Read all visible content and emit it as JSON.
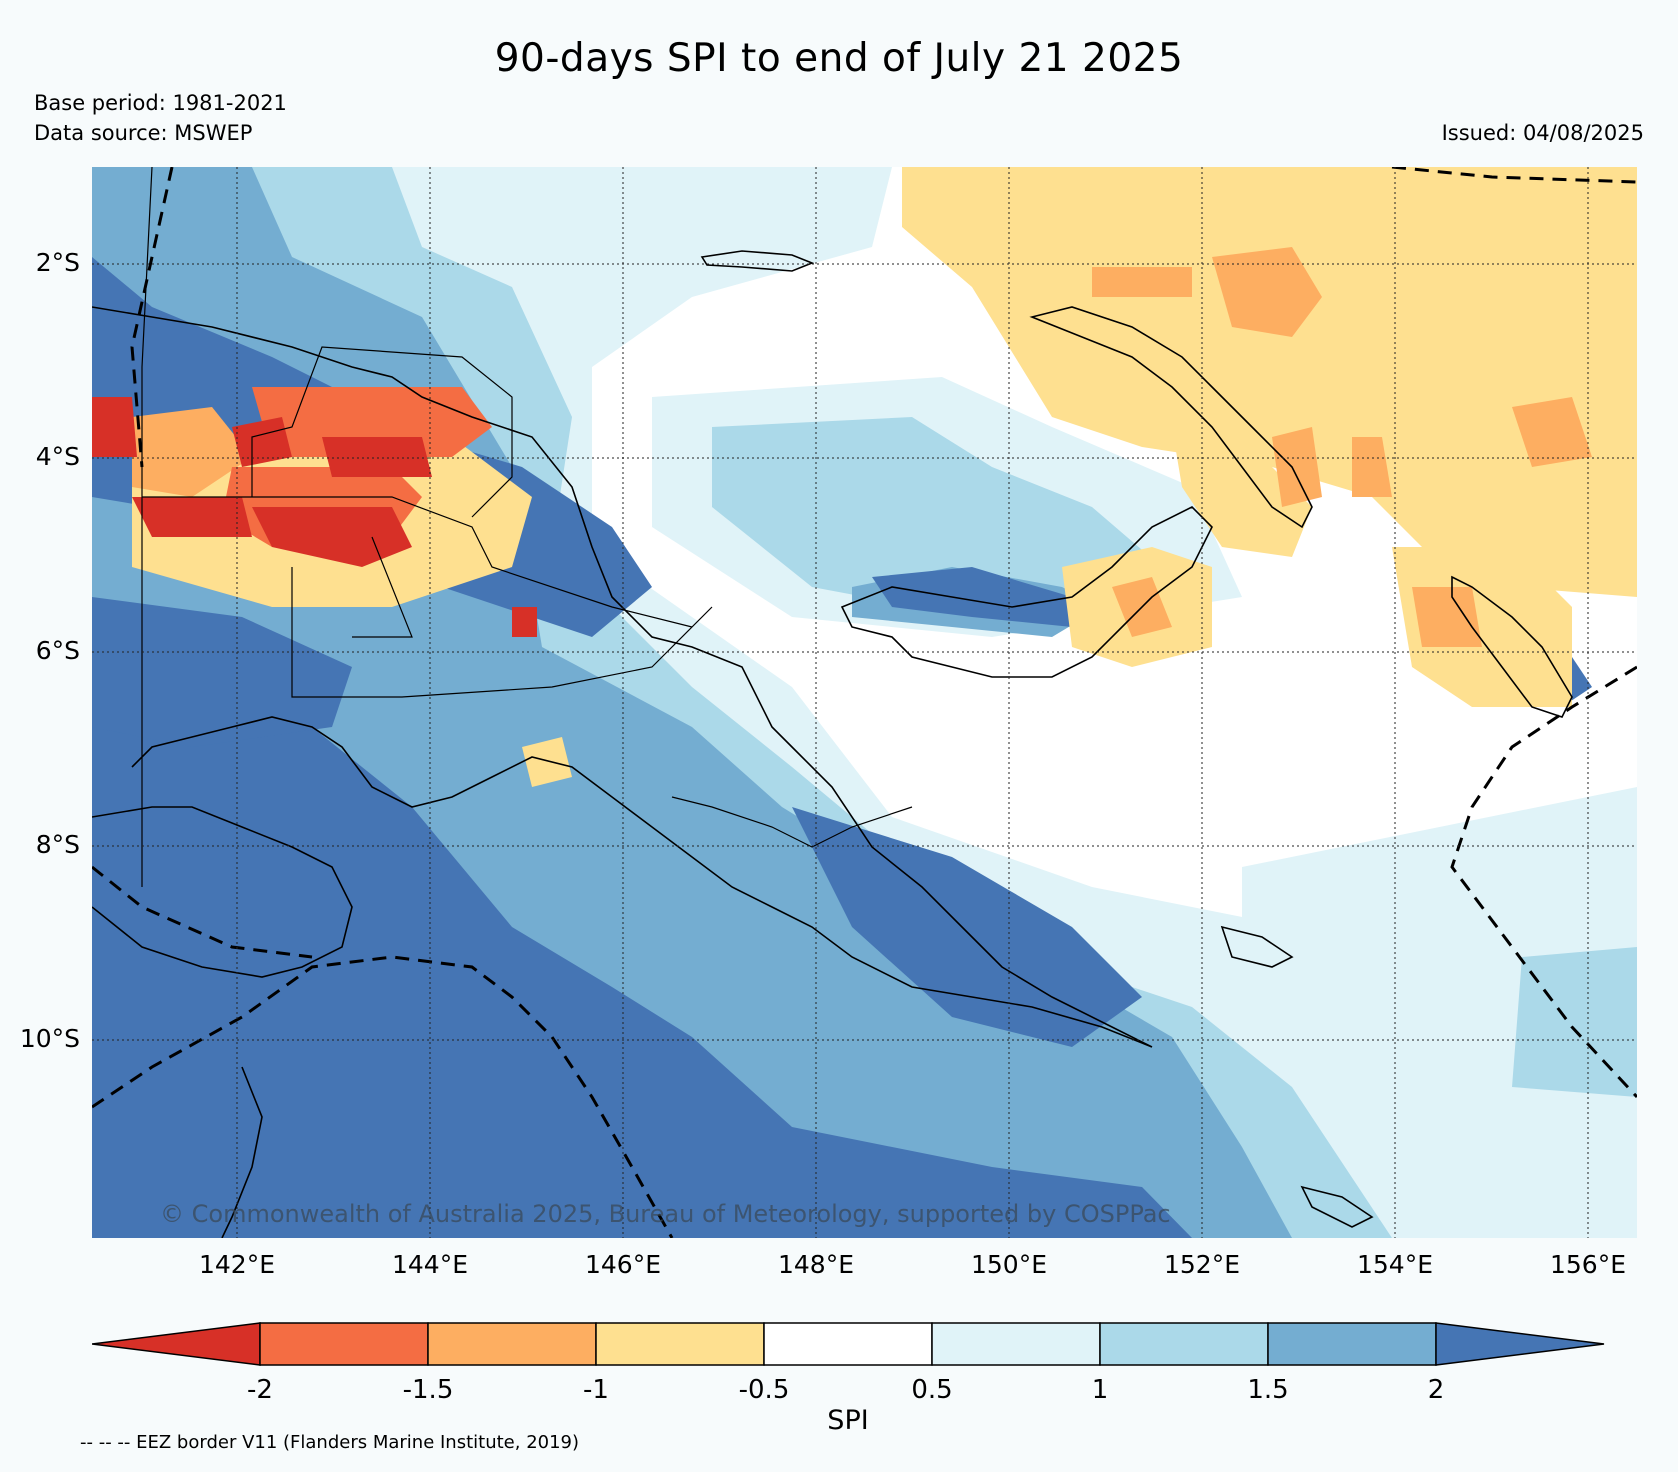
{
  "title": "90-days SPI to end of July 21 2025",
  "base_period": "Base period: 1981-2021",
  "data_source": "Data source: MSWEP",
  "issued": "Issued: 04/08/2025",
  "credit": "© Commonwealth of Australia 2025, Bureau of Meteorology, supported by COSPPac",
  "footnote": "-- -- -- EEZ border V11 (Flanders Marine Institute, 2019)",
  "map": {
    "lat_labels": [
      "2°S",
      "4°S",
      "6°S",
      "8°S",
      "10°S"
    ],
    "lon_labels": [
      "142°E",
      "144°E",
      "146°E",
      "148°E",
      "150°E",
      "152°E",
      "154°E",
      "156°E"
    ]
  },
  "colorbar": {
    "label": "SPI",
    "tick_labels": [
      "-2",
      "-1.5",
      "-1",
      "-0.5",
      "0.5",
      "1",
      "1.5",
      "2"
    ],
    "colors": [
      "#d73027",
      "#f46d43",
      "#fdae61",
      "#fee090",
      "#ffffff",
      "#e0f3f8",
      "#abd9e9",
      "#74add1",
      "#4575b4"
    ],
    "bounds": [
      -2,
      -1.5,
      -1,
      -0.5,
      0.5,
      1,
      1.5,
      2
    ]
  }
}
